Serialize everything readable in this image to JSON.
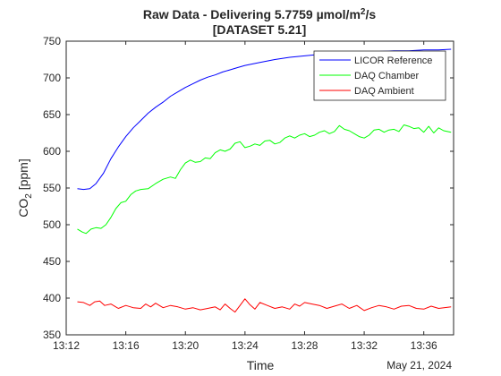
{
  "chart_data": {
    "type": "line",
    "title_line1": "Raw Data - Delivering 5.7759 µmol/m",
    "title_sup": "2",
    "title_line1_end": "/s",
    "title_line2": "[DATASET 5.21]",
    "xlabel": "Time",
    "ylabel_main": "CO",
    "ylabel_sub": "2",
    "ylabel_unit": " [ppm]",
    "date_label": "May 21, 2024",
    "xlim": [
      "13:12",
      "13:38"
    ],
    "ylim": [
      350,
      750
    ],
    "x_ticks": [
      "13:12",
      "13:16",
      "13:20",
      "13:24",
      "13:28",
      "13:32",
      "13:36"
    ],
    "y_ticks": [
      350,
      400,
      450,
      500,
      550,
      600,
      650,
      700,
      750
    ],
    "legend_position": "top-right",
    "grid": false,
    "series": [
      {
        "name": "LICOR Reference",
        "color": "#0000ff",
        "points": [
          [
            "13:12:45",
            549
          ],
          [
            "13:13:10",
            548
          ],
          [
            "13:13:35",
            549
          ],
          [
            "13:14:00",
            556
          ],
          [
            "13:14:30",
            570
          ],
          [
            "13:15:00",
            590
          ],
          [
            "13:15:30",
            606
          ],
          [
            "13:16:00",
            620
          ],
          [
            "13:16:30",
            632
          ],
          [
            "13:17:00",
            642
          ],
          [
            "13:17:30",
            652
          ],
          [
            "13:18:00",
            660
          ],
          [
            "13:18:30",
            667
          ],
          [
            "13:19:00",
            675
          ],
          [
            "13:19:30",
            681
          ],
          [
            "13:20:00",
            687
          ],
          [
            "13:20:30",
            692
          ],
          [
            "13:21:00",
            697
          ],
          [
            "13:21:30",
            701
          ],
          [
            "13:22:00",
            704
          ],
          [
            "13:22:30",
            708
          ],
          [
            "13:23:00",
            711
          ],
          [
            "13:23:30",
            714
          ],
          [
            "13:24:00",
            717
          ],
          [
            "13:25:00",
            721
          ],
          [
            "13:26:00",
            725
          ],
          [
            "13:27:00",
            728
          ],
          [
            "13:28:00",
            730
          ],
          [
            "13:29:00",
            732
          ],
          [
            "13:30:00",
            733
          ],
          [
            "13:31:00",
            734
          ],
          [
            "13:32:00",
            735
          ],
          [
            "13:33:00",
            736
          ],
          [
            "13:34:00",
            737
          ],
          [
            "13:35:00",
            737
          ],
          [
            "13:36:00",
            738
          ],
          [
            "13:37:00",
            738
          ],
          [
            "13:37:50",
            739
          ]
        ]
      },
      {
        "name": "DAQ Chamber",
        "color": "#00ff00",
        "points": [
          [
            "13:12:45",
            494
          ],
          [
            "13:13:05",
            490
          ],
          [
            "13:13:20",
            488
          ],
          [
            "13:13:40",
            494
          ],
          [
            "13:14:00",
            496
          ],
          [
            "13:14:20",
            495
          ],
          [
            "13:14:40",
            500
          ],
          [
            "13:15:00",
            510
          ],
          [
            "13:15:20",
            522
          ],
          [
            "13:15:40",
            530
          ],
          [
            "13:16:00",
            532
          ],
          [
            "13:16:20",
            541
          ],
          [
            "13:16:40",
            546
          ],
          [
            "13:17:00",
            548
          ],
          [
            "13:17:30",
            549
          ],
          [
            "13:18:00",
            556
          ],
          [
            "13:18:30",
            562
          ],
          [
            "13:19:00",
            565
          ],
          [
            "13:19:20",
            563
          ],
          [
            "13:19:40",
            575
          ],
          [
            "13:20:00",
            584
          ],
          [
            "13:20:20",
            588
          ],
          [
            "13:20:40",
            585
          ],
          [
            "13:21:00",
            586
          ],
          [
            "13:21:20",
            591
          ],
          [
            "13:21:40",
            590
          ],
          [
            "13:22:00",
            598
          ],
          [
            "13:22:20",
            602
          ],
          [
            "13:22:40",
            600
          ],
          [
            "13:23:00",
            603
          ],
          [
            "13:23:20",
            611
          ],
          [
            "13:23:40",
            613
          ],
          [
            "13:24:00",
            605
          ],
          [
            "13:24:20",
            607
          ],
          [
            "13:24:40",
            610
          ],
          [
            "13:25:00",
            608
          ],
          [
            "13:25:20",
            614
          ],
          [
            "13:25:40",
            615
          ],
          [
            "13:26:00",
            610
          ],
          [
            "13:26:20",
            612
          ],
          [
            "13:26:40",
            618
          ],
          [
            "13:27:00",
            621
          ],
          [
            "13:27:20",
            618
          ],
          [
            "13:27:40",
            622
          ],
          [
            "13:28:00",
            624
          ],
          [
            "13:28:20",
            620
          ],
          [
            "13:28:40",
            622
          ],
          [
            "13:29:00",
            626
          ],
          [
            "13:29:20",
            628
          ],
          [
            "13:29:40",
            624
          ],
          [
            "13:30:00",
            627
          ],
          [
            "13:30:20",
            635
          ],
          [
            "13:30:40",
            630
          ],
          [
            "13:31:00",
            628
          ],
          [
            "13:31:20",
            624
          ],
          [
            "13:31:40",
            620
          ],
          [
            "13:32:00",
            618
          ],
          [
            "13:32:20",
            622
          ],
          [
            "13:32:40",
            629
          ],
          [
            "13:33:00",
            630
          ],
          [
            "13:33:20",
            626
          ],
          [
            "13:33:40",
            629
          ],
          [
            "13:34:00",
            630
          ],
          [
            "13:34:20",
            627
          ],
          [
            "13:34:40",
            636
          ],
          [
            "13:35:00",
            634
          ],
          [
            "13:35:20",
            631
          ],
          [
            "13:35:40",
            632
          ],
          [
            "13:36:00",
            626
          ],
          [
            "13:36:20",
            634
          ],
          [
            "13:36:40",
            625
          ],
          [
            "13:37:00",
            632
          ],
          [
            "13:37:20",
            628
          ],
          [
            "13:37:50",
            626
          ]
        ]
      },
      {
        "name": "DAQ Ambient",
        "color": "#ff0000",
        "points": [
          [
            "13:12:45",
            395
          ],
          [
            "13:13:10",
            394
          ],
          [
            "13:13:35",
            390
          ],
          [
            "13:13:55",
            395
          ],
          [
            "13:14:15",
            396
          ],
          [
            "13:14:35",
            390
          ],
          [
            "13:15:00",
            392
          ],
          [
            "13:15:30",
            386
          ],
          [
            "13:16:00",
            390
          ],
          [
            "13:16:30",
            387
          ],
          [
            "13:17:00",
            386
          ],
          [
            "13:17:20",
            392
          ],
          [
            "13:17:40",
            388
          ],
          [
            "13:18:00",
            393
          ],
          [
            "13:18:30",
            387
          ],
          [
            "13:19:00",
            390
          ],
          [
            "13:19:30",
            388
          ],
          [
            "13:20:00",
            385
          ],
          [
            "13:20:30",
            387
          ],
          [
            "13:21:00",
            384
          ],
          [
            "13:21:30",
            386
          ],
          [
            "13:22:00",
            388
          ],
          [
            "13:22:20",
            384
          ],
          [
            "13:22:40",
            392
          ],
          [
            "13:23:00",
            386
          ],
          [
            "13:23:20",
            381
          ],
          [
            "13:23:40",
            390
          ],
          [
            "13:24:00",
            399
          ],
          [
            "13:24:20",
            391
          ],
          [
            "13:24:40",
            385
          ],
          [
            "13:25:00",
            394
          ],
          [
            "13:25:30",
            390
          ],
          [
            "13:26:00",
            386
          ],
          [
            "13:26:30",
            388
          ],
          [
            "13:27:00",
            385
          ],
          [
            "13:27:20",
            392
          ],
          [
            "13:27:40",
            389
          ],
          [
            "13:28:00",
            394
          ],
          [
            "13:28:30",
            392
          ],
          [
            "13:29:00",
            390
          ],
          [
            "13:29:30",
            386
          ],
          [
            "13:30:00",
            389
          ],
          [
            "13:30:30",
            392
          ],
          [
            "13:31:00",
            386
          ],
          [
            "13:31:30",
            390
          ],
          [
            "13:32:00",
            383
          ],
          [
            "13:32:30",
            387
          ],
          [
            "13:33:00",
            390
          ],
          [
            "13:33:30",
            388
          ],
          [
            "13:34:00",
            385
          ],
          [
            "13:34:30",
            389
          ],
          [
            "13:35:00",
            390
          ],
          [
            "13:35:30",
            386
          ],
          [
            "13:36:00",
            385
          ],
          [
            "13:36:30",
            389
          ],
          [
            "13:37:00",
            386
          ],
          [
            "13:37:50",
            388
          ]
        ]
      }
    ]
  }
}
